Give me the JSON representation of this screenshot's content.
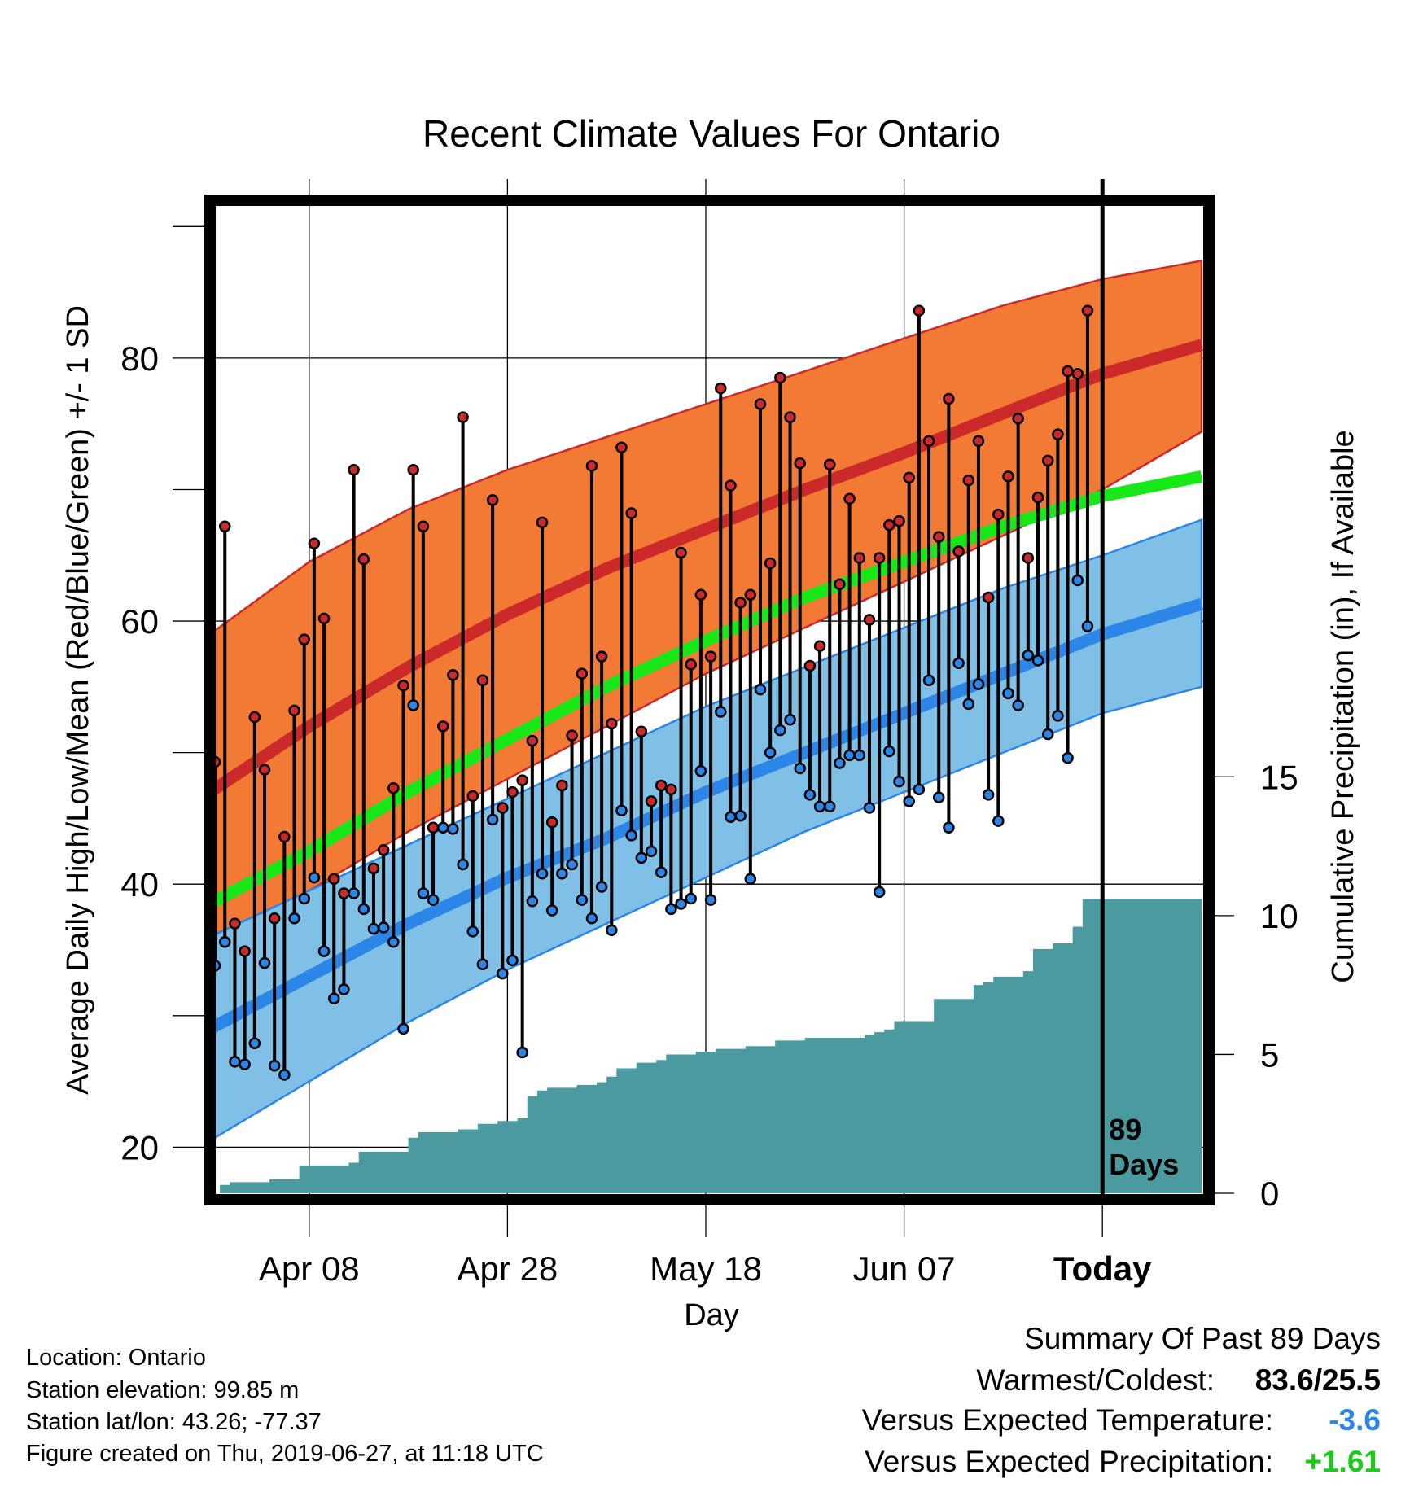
{
  "chart_data": {
    "type": "line",
    "title": "Recent Climate Values For Ontario",
    "xlabel": "Day",
    "ylabel": "Average Daily High/Low/Mean (Red/Blue/Green) +/- 1 SD",
    "y2label": "Cumulative Precipitation (in), If Available",
    "x_ticks": [
      "Apr 08",
      "Apr 28",
      "May 18",
      "Jun 07",
      "Today"
    ],
    "x_tick_days": [
      10,
      30,
      50,
      70,
      90
    ],
    "x_range": [
      0,
      100
    ],
    "y_ticks": [
      20,
      40,
      60,
      80
    ],
    "y_range": [
      16,
      92
    ],
    "y2_ticks": [
      0,
      5,
      10,
      15
    ],
    "y2_range": [
      0,
      36
    ],
    "today_day": 90,
    "today_marker_label_line1": "89",
    "today_marker_label_line2": "Days",
    "colors": {
      "high_band": "#f27a35",
      "high_mean": "#cc2a2a",
      "low_band": "#80c0e6",
      "low_mean": "#2b86e8",
      "mean_line": "#18e818",
      "precip": "#4a9aa0",
      "point_high": "#cc2a2a",
      "point_low": "#2b86e8",
      "summary_blue": "#2b86e8",
      "summary_green": "#18cc18"
    },
    "normals": {
      "days": [
        0,
        10,
        20,
        30,
        40,
        50,
        60,
        70,
        80,
        90,
        100
      ],
      "high_upper": [
        59,
        64.5,
        68.5,
        71.5,
        74,
        76.5,
        79,
        81.5,
        84,
        86,
        87.4
      ],
      "high_mean": [
        47,
        52,
        56.5,
        60.5,
        64,
        67,
        70,
        72.8,
        75.8,
        78.8,
        81
      ],
      "high_lower": [
        35.2,
        39.5,
        44,
        48,
        52,
        56,
        59.5,
        63,
        66.5,
        70,
        74.4
      ],
      "mean": [
        38.5,
        42.5,
        47,
        51,
        55,
        58.5,
        61.8,
        64.5,
        67.2,
        69.5,
        71
      ],
      "low_upper": [
        36,
        39.5,
        43,
        46.5,
        50,
        53.5,
        56.5,
        59.5,
        62.5,
        65,
        67.7
      ],
      "low_mean": [
        29,
        33,
        37,
        40.5,
        43.5,
        47,
        50,
        53,
        56,
        59,
        61.3
      ],
      "low_lower": [
        20.5,
        25,
        29.5,
        33.5,
        37,
        40.5,
        44,
        47,
        50,
        53,
        55
      ]
    },
    "daily_high": [
      49.3,
      67.2,
      37,
      34.9,
      52.7,
      48.7,
      37.4,
      43.6,
      53.2,
      58.6,
      65.9,
      60.2,
      40.4,
      39.3,
      71.5,
      64.7,
      41.2,
      42.6,
      47.3,
      55.1,
      71.5,
      67.2,
      44.3,
      52,
      55.9,
      75.5,
      46.7,
      55.5,
      69.2,
      45.8,
      47,
      47.9,
      50.9,
      67.5,
      44.7,
      47.5,
      51.3,
      56,
      71.8,
      57.3,
      52.2,
      73.2,
      68.2,
      51.6,
      46.3,
      47.5,
      47.2,
      65.2,
      56.7,
      62,
      57.3,
      77.7,
      70.3,
      61.4,
      62,
      76.5,
      64.4,
      78.5,
      75.5,
      72,
      56.6,
      58.1,
      71.9,
      62.8,
      69.3,
      64.8,
      60.1,
      64.8,
      67.3,
      67.6,
      70.9,
      83.6,
      73.7,
      66.4,
      76.9,
      65.3,
      70.7,
      73.7,
      61.8,
      68.1,
      71,
      75.4,
      64.8,
      69.4,
      72.2,
      74.2,
      79,
      78.8,
      83.6
    ],
    "daily_low": [
      33.8,
      35.6,
      26.5,
      26.3,
      27.9,
      34,
      26.2,
      25.5,
      37.4,
      38.9,
      40.5,
      34.9,
      31.3,
      32,
      39.3,
      38.1,
      36.6,
      36.7,
      35.6,
      29,
      53.6,
      39.3,
      38.8,
      44.3,
      44.2,
      41.5,
      36.4,
      33.9,
      44.9,
      33.2,
      34.2,
      27.2,
      38.7,
      40.8,
      38,
      40.8,
      41.5,
      38.8,
      37.4,
      39.8,
      36.5,
      45.6,
      43.7,
      42,
      42.5,
      40.9,
      38.1,
      38.5,
      38.9,
      48.6,
      38.8,
      53.1,
      45.1,
      45.2,
      40.4,
      54.8,
      50,
      51.7,
      52.5,
      48.8,
      46.8,
      45.9,
      45.9,
      49.2,
      49.8,
      49.8,
      45.8,
      39.4,
      50.1,
      47.8,
      46.3,
      47.2,
      55.5,
      46.6,
      44.3,
      56.8,
      53.7,
      55.2,
      46.8,
      44.8,
      54.5,
      53.6,
      57.4,
      57,
      51.4,
      52.8,
      49.6,
      63.1,
      59.6
    ],
    "precip_cumulative": [
      0,
      0.3,
      0.4,
      0.4,
      0.4,
      0.4,
      0.5,
      0.5,
      0.5,
      1.0,
      1.0,
      1.0,
      1.0,
      1.0,
      1.1,
      1.5,
      1.5,
      1.5,
      1.5,
      1.5,
      2.0,
      2.2,
      2.2,
      2.2,
      2.2,
      2.3,
      2.3,
      2.5,
      2.5,
      2.6,
      2.6,
      2.7,
      3.5,
      3.7,
      3.8,
      3.8,
      3.8,
      3.9,
      3.9,
      4.0,
      4.2,
      4.5,
      4.5,
      4.7,
      4.7,
      4.8,
      5.0,
      5.0,
      5.0,
      5.1,
      5.1,
      5.2,
      5.2,
      5.2,
      5.3,
      5.3,
      5.3,
      5.5,
      5.5,
      5.5,
      5.6,
      5.6,
      5.6,
      5.6,
      5.6,
      5.6,
      5.7,
      5.8,
      5.9,
      6.2,
      6.2,
      6.2,
      6.2,
      7.0,
      7.0,
      7.0,
      7.0,
      7.5,
      7.6,
      7.8,
      7.8,
      7.8,
      8.0,
      8.8,
      8.8,
      9.0,
      9.0,
      9.6,
      10.6,
      10.6,
      10.6,
      10.6,
      10.6,
      10.6,
      10.6,
      10.6,
      10.6,
      10.6,
      10.6,
      10.6
    ]
  },
  "footer": {
    "location": "Location: Ontario",
    "elevation": "Station elevation: 99.85 m",
    "latlon": "Station lat/lon: 43.26; -77.37",
    "created": "Figure created on Thu, 2019-06-27, at 11:18 UTC"
  },
  "summary": {
    "heading": "Summary Of Past 89 Days",
    "warmest_label": "Warmest/Coldest:",
    "warmest_value": "83.6/25.5",
    "temp_label": "Versus Expected Temperature:",
    "temp_value": "-3.6",
    "precip_label": "Versus Expected Precipitation:",
    "precip_value": "+1.61"
  }
}
